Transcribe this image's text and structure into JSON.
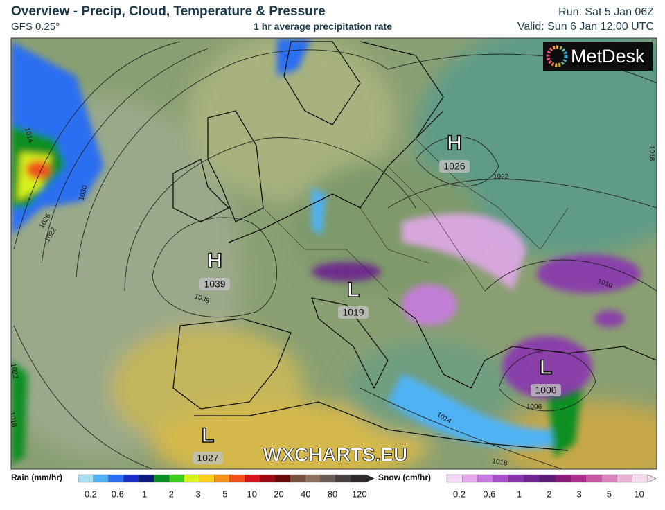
{
  "header": {
    "title": "Overview - Precip, Cloud, Temperature & Pressure",
    "model": "GFS 0.25°",
    "subtitle": "1 hr average precipitation rate",
    "run": "Run: Sat 5 Jan 06Z",
    "valid": "Valid: Sun 6 Jan 12:00 UTC",
    "logo": "MetDesk"
  },
  "map": {
    "watermark": "WXCHARTS.EU",
    "centers": [
      {
        "letter": "H",
        "value": "1026"
      },
      {
        "letter": "H",
        "value": "1039"
      },
      {
        "letter": "L",
        "value": "1019"
      },
      {
        "letter": "L",
        "value": "1000"
      },
      {
        "letter": "L",
        "value": "1027"
      }
    ],
    "isobar_labels": [
      "1014",
      "1026",
      "1030",
      "1022",
      "1038",
      "1022",
      "1018",
      "1010",
      "1022",
      "1018",
      "1014",
      "1006",
      "1018"
    ]
  },
  "legend": {
    "rain": {
      "title": "Rain (mm/hr)",
      "ticks": [
        "0.2",
        "0.6",
        "1",
        "2",
        "3",
        "5",
        "10",
        "20",
        "40",
        "80",
        "120"
      ],
      "colors": [
        "#a8dff0",
        "#4fb2f5",
        "#2b6ef2",
        "#1b2fc8",
        "#0e1a80",
        "#0b8f22",
        "#3ccf1e",
        "#d7f21e",
        "#f7cf1c",
        "#f5921c",
        "#f0511c",
        "#d6141c",
        "#9a0b12",
        "#6b0a0a",
        "#7a5040",
        "#8f6f60",
        "#6b5a55",
        "#4a4040",
        "#2e2a2a"
      ]
    },
    "snow": {
      "title": "Snow (cm/hr)",
      "ticks": [
        "0.2",
        "0.6",
        "1",
        "2",
        "3",
        "5",
        "10"
      ],
      "colors": [
        "#f3d9f3",
        "#e2a8ea",
        "#c97ae0",
        "#a94fcc",
        "#8a35b0",
        "#6d2490",
        "#5a1e78",
        "#8a1a7a",
        "#b0308f",
        "#c857a6",
        "#d983bd",
        "#e8b0d5",
        "#f5dcec"
      ]
    }
  }
}
